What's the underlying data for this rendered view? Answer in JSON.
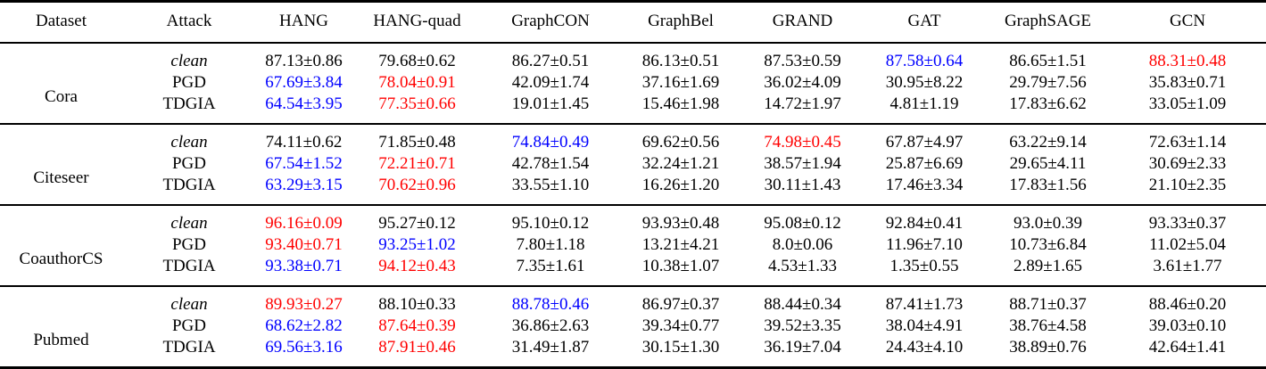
{
  "colors": {
    "default_text": "#000000",
    "best_value_red": "#ff0000",
    "runner_up_blue": "#0000ff"
  },
  "table": {
    "columns": [
      "Dataset",
      "Attack",
      "HANG",
      "HANG-quad",
      "GraphCON",
      "GraphBel",
      "GRAND",
      "GAT",
      "GraphSAGE",
      "GCN"
    ],
    "sections": [
      {
        "dataset": "Cora",
        "rows": [
          {
            "attack": "clean",
            "italic": true,
            "values": [
              {
                "t": "87.13±0.86",
                "c": "k"
              },
              {
                "t": "79.68±0.62",
                "c": "k"
              },
              {
                "t": "86.27±0.51",
                "c": "k"
              },
              {
                "t": "86.13±0.51",
                "c": "k"
              },
              {
                "t": "87.53±0.59",
                "c": "k"
              },
              {
                "t": "87.58±0.64",
                "c": "b"
              },
              {
                "t": "86.65±1.51",
                "c": "k"
              },
              {
                "t": "88.31±0.48",
                "c": "r"
              }
            ]
          },
          {
            "attack": "PGD",
            "italic": false,
            "values": [
              {
                "t": "67.69±3.84",
                "c": "b"
              },
              {
                "t": "78.04±0.91",
                "c": "r"
              },
              {
                "t": "42.09±1.74",
                "c": "k"
              },
              {
                "t": "37.16±1.69",
                "c": "k"
              },
              {
                "t": "36.02±4.09",
                "c": "k"
              },
              {
                "t": "30.95±8.22",
                "c": "k"
              },
              {
                "t": "29.79±7.56",
                "c": "k"
              },
              {
                "t": "35.83±0.71",
                "c": "k"
              }
            ]
          },
          {
            "attack": "TDGIA",
            "italic": false,
            "values": [
              {
                "t": "64.54±3.95",
                "c": "b"
              },
              {
                "t": "77.35±0.66",
                "c": "r"
              },
              {
                "t": "19.01±1.45",
                "c": "k"
              },
              {
                "t": "15.46±1.98",
                "c": "k"
              },
              {
                "t": "14.72±1.97",
                "c": "k"
              },
              {
                "t": "4.81±1.19",
                "c": "k"
              },
              {
                "t": "17.83±6.62",
                "c": "k"
              },
              {
                "t": "33.05±1.09",
                "c": "k"
              }
            ]
          }
        ]
      },
      {
        "dataset": "Citeseer",
        "rows": [
          {
            "attack": "clean",
            "italic": true,
            "values": [
              {
                "t": "74.11±0.62",
                "c": "k"
              },
              {
                "t": "71.85±0.48",
                "c": "k"
              },
              {
                "t": "74.84±0.49",
                "c": "b"
              },
              {
                "t": "69.62±0.56",
                "c": "k"
              },
              {
                "t": "74.98±0.45",
                "c": "r"
              },
              {
                "t": "67.87±4.97",
                "c": "k"
              },
              {
                "t": "63.22±9.14",
                "c": "k"
              },
              {
                "t": "72.63±1.14",
                "c": "k"
              }
            ]
          },
          {
            "attack": "PGD",
            "italic": false,
            "values": [
              {
                "t": "67.54±1.52",
                "c": "b"
              },
              {
                "t": "72.21±0.71",
                "c": "r"
              },
              {
                "t": "42.78±1.54",
                "c": "k"
              },
              {
                "t": "32.24±1.21",
                "c": "k"
              },
              {
                "t": "38.57±1.94",
                "c": "k"
              },
              {
                "t": "25.87±6.69",
                "c": "k"
              },
              {
                "t": "29.65±4.11",
                "c": "k"
              },
              {
                "t": "30.69±2.33",
                "c": "k"
              }
            ]
          },
          {
            "attack": "TDGIA",
            "italic": false,
            "values": [
              {
                "t": "63.29±3.15",
                "c": "b"
              },
              {
                "t": "70.62±0.96",
                "c": "r"
              },
              {
                "t": "33.55±1.10",
                "c": "k"
              },
              {
                "t": "16.26±1.20",
                "c": "k"
              },
              {
                "t": "30.11±1.43",
                "c": "k"
              },
              {
                "t": "17.46±3.34",
                "c": "k"
              },
              {
                "t": "17.83±1.56",
                "c": "k"
              },
              {
                "t": "21.10±2.35",
                "c": "k"
              }
            ]
          }
        ]
      },
      {
        "dataset": "CoauthorCS",
        "rows": [
          {
            "attack": "clean",
            "italic": true,
            "values": [
              {
                "t": "96.16±0.09",
                "c": "r"
              },
              {
                "t": "95.27±0.12",
                "c": "k"
              },
              {
                "t": "95.10±0.12",
                "c": "k"
              },
              {
                "t": "93.93±0.48",
                "c": "k"
              },
              {
                "t": "95.08±0.12",
                "c": "k"
              },
              {
                "t": "92.84±0.41",
                "c": "k"
              },
              {
                "t": "93.0±0.39",
                "c": "k"
              },
              {
                "t": "93.33±0.37",
                "c": "k"
              }
            ]
          },
          {
            "attack": "PGD",
            "italic": false,
            "values": [
              {
                "t": "93.40±0.71",
                "c": "r"
              },
              {
                "t": "93.25±1.02",
                "c": "b"
              },
              {
                "t": "7.80±1.18",
                "c": "k"
              },
              {
                "t": "13.21±4.21",
                "c": "k"
              },
              {
                "t": "8.0±0.06",
                "c": "k"
              },
              {
                "t": "11.96±7.10",
                "c": "k"
              },
              {
                "t": "10.73±6.84",
                "c": "k"
              },
              {
                "t": "11.02±5.04",
                "c": "k"
              }
            ]
          },
          {
            "attack": "TDGIA",
            "italic": false,
            "values": [
              {
                "t": "93.38±0.71",
                "c": "b"
              },
              {
                "t": "94.12±0.43",
                "c": "r"
              },
              {
                "t": "7.35±1.61",
                "c": "k"
              },
              {
                "t": "10.38±1.07",
                "c": "k"
              },
              {
                "t": "4.53±1.33",
                "c": "k"
              },
              {
                "t": "1.35±0.55",
                "c": "k"
              },
              {
                "t": "2.89±1.65",
                "c": "k"
              },
              {
                "t": "3.61±1.77",
                "c": "k"
              }
            ]
          }
        ]
      },
      {
        "dataset": "Pubmed",
        "rows": [
          {
            "attack": "clean",
            "italic": true,
            "values": [
              {
                "t": "89.93±0.27",
                "c": "r"
              },
              {
                "t": "88.10±0.33",
                "c": "k"
              },
              {
                "t": "88.78±0.46",
                "c": "b"
              },
              {
                "t": "86.97±0.37",
                "c": "k"
              },
              {
                "t": "88.44±0.34",
                "c": "k"
              },
              {
                "t": "87.41±1.73",
                "c": "k"
              },
              {
                "t": "88.71±0.37",
                "c": "k"
              },
              {
                "t": "88.46±0.20",
                "c": "k"
              }
            ]
          },
          {
            "attack": "PGD",
            "italic": false,
            "values": [
              {
                "t": "68.62±2.82",
                "c": "b"
              },
              {
                "t": "87.64±0.39",
                "c": "r"
              },
              {
                "t": "36.86±2.63",
                "c": "k"
              },
              {
                "t": "39.34±0.77",
                "c": "k"
              },
              {
                "t": "39.52±3.35",
                "c": "k"
              },
              {
                "t": "38.04±4.91",
                "c": "k"
              },
              {
                "t": "38.76±4.58",
                "c": "k"
              },
              {
                "t": "39.03±0.10",
                "c": "k"
              }
            ]
          },
          {
            "attack": "TDGIA",
            "italic": false,
            "values": [
              {
                "t": "69.56±3.16",
                "c": "b"
              },
              {
                "t": "87.91±0.46",
                "c": "r"
              },
              {
                "t": "31.49±1.87",
                "c": "k"
              },
              {
                "t": "30.15±1.30",
                "c": "k"
              },
              {
                "t": "36.19±7.04",
                "c": "k"
              },
              {
                "t": "24.43±4.10",
                "c": "k"
              },
              {
                "t": "38.89±0.76",
                "c": "k"
              },
              {
                "t": "42.64±1.41",
                "c": "k"
              }
            ]
          }
        ]
      }
    ]
  }
}
